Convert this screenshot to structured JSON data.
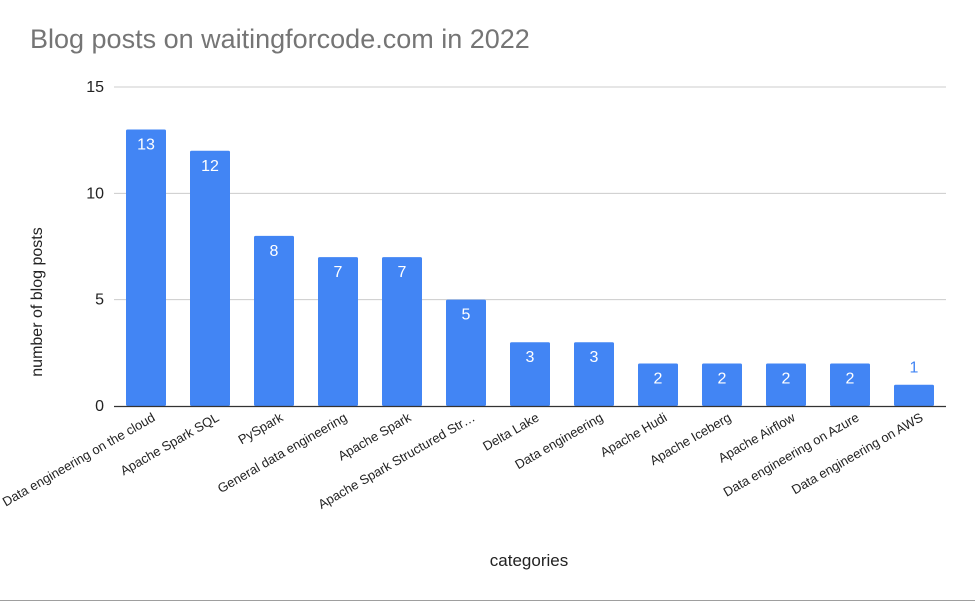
{
  "chart_data": {
    "type": "bar",
    "title": "Blog posts on waitingforcode.com in 2022",
    "xlabel": "categories",
    "ylabel": "number of blog posts",
    "categories": [
      "Data engineering on the cloud",
      "Apache Spark SQL",
      "PySpark",
      "General data engineering",
      "Apache Spark",
      "Apache Spark Structured Str…",
      "Delta Lake",
      "Data engineering",
      "Apache Hudi",
      "Apache Iceberg",
      "Apache Airflow",
      "Data engineering on Azure",
      "Data engineering on AWS"
    ],
    "values": [
      13,
      12,
      8,
      7,
      7,
      5,
      3,
      3,
      2,
      2,
      2,
      2,
      1
    ],
    "ylim": [
      0,
      15
    ],
    "yticks": [
      0,
      5,
      10,
      15
    ],
    "grid": true,
    "legend": "none",
    "colors": {
      "bar": "#4285f4",
      "label_inside": "#ffffff",
      "label_outside": "#4285f4",
      "grid": "#cccccc",
      "axis": "#333333",
      "title": "#757575"
    }
  }
}
